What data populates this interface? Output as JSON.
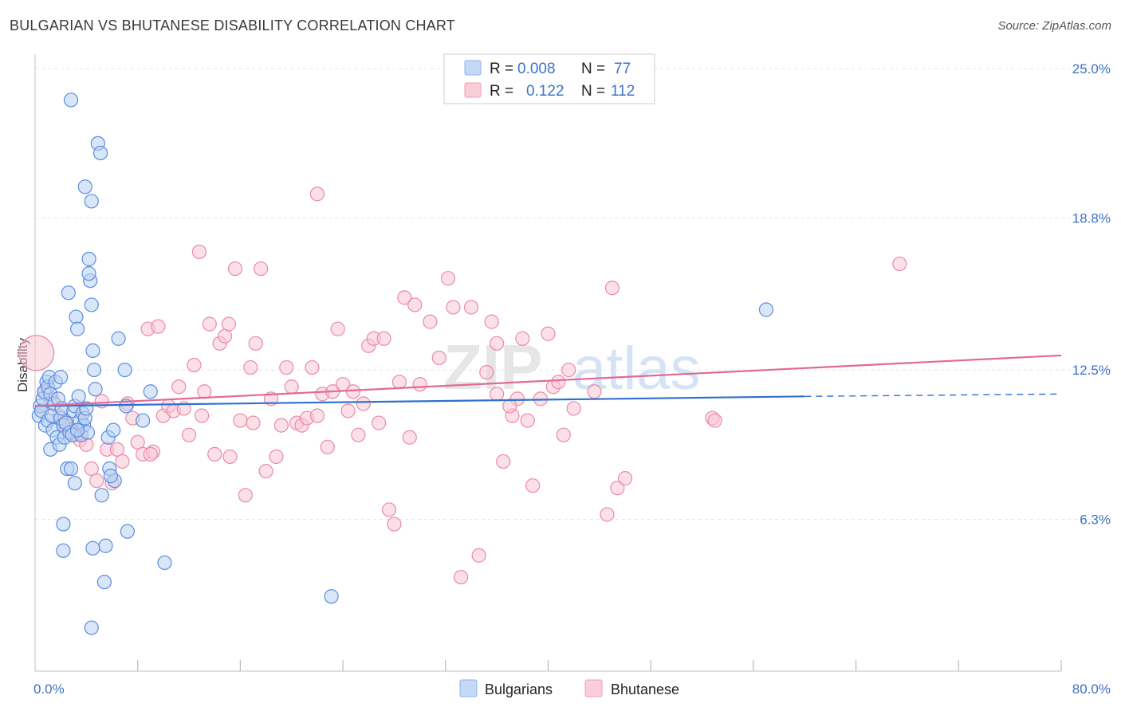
{
  "title": "BULGARIAN VS BHUTANESE DISABILITY CORRELATION CHART",
  "source": "Source: ZipAtlas.com",
  "watermark": {
    "zip": "ZIP",
    "atlas": "atlas"
  },
  "legend": {
    "r_label": "R =",
    "n_label": "N =",
    "rows": [
      {
        "r": "0.008",
        "n": "77",
        "color": "#8ab4f0",
        "fill": "#c5d9f7"
      },
      {
        "r": "0.122",
        "n": "112",
        "color": "#f0a0b8",
        "fill": "#f9cdd9"
      }
    ]
  },
  "bottom_legend": [
    "Bulgarians",
    "Bhutanese"
  ],
  "colors": {
    "blue_point_stroke": "#5b8de0",
    "blue_point_fill": "#b9d1f3",
    "pink_point_stroke": "#ea8aa8",
    "pink_point_fill": "#f7c6d5",
    "blue_line": "#2f6fd0",
    "pink_line": "#e06a95",
    "grid": "#e4e4e4",
    "tick_text": "#3d72c8"
  },
  "chart_data": {
    "type": "scatter",
    "ylabel": "Disability",
    "xlim": [
      0,
      80
    ],
    "ylim": [
      0,
      25.6
    ],
    "y_ticks": [
      {
        "value": 25.0,
        "label": "25.0%"
      },
      {
        "value": 18.8,
        "label": "18.8%"
      },
      {
        "value": 12.5,
        "label": "12.5%"
      },
      {
        "value": 6.3,
        "label": "6.3%"
      }
    ],
    "x_tick_labels": {
      "left": "0.0%",
      "right": "80.0%"
    },
    "x_minor_ticks": [
      8,
      16,
      24,
      32,
      40,
      48,
      56,
      64,
      72
    ],
    "grid": true,
    "series": [
      {
        "name": "Bulgarians",
        "trend": {
          "x0": 0,
          "y0": 11.0,
          "x1": 60,
          "y1": 11.4,
          "dash_to": 80,
          "dash_y": 11.5
        },
        "points": [
          [
            0.3,
            10.6
          ],
          [
            0.4,
            11.0
          ],
          [
            0.5,
            10.8
          ],
          [
            0.6,
            11.3
          ],
          [
            0.7,
            11.6
          ],
          [
            0.8,
            10.2
          ],
          [
            0.9,
            12.0
          ],
          [
            1.0,
            11.8
          ],
          [
            1.0,
            10.4
          ],
          [
            1.1,
            12.2
          ],
          [
            1.2,
            9.2
          ],
          [
            1.2,
            11.5
          ],
          [
            1.3,
            10.6
          ],
          [
            1.4,
            10.0
          ],
          [
            1.5,
            11.1
          ],
          [
            1.6,
            12.0
          ],
          [
            1.7,
            9.7
          ],
          [
            1.8,
            11.3
          ],
          [
            1.9,
            9.4
          ],
          [
            2.0,
            10.5
          ],
          [
            2.0,
            12.2
          ],
          [
            2.1,
            10.9
          ],
          [
            2.2,
            10.2
          ],
          [
            2.3,
            9.7
          ],
          [
            2.4,
            10.3
          ],
          [
            2.5,
            8.4
          ],
          [
            2.6,
            15.7
          ],
          [
            2.7,
            9.9
          ],
          [
            2.8,
            8.4
          ],
          [
            2.9,
            9.8
          ],
          [
            3.0,
            10.8
          ],
          [
            3.1,
            11.0
          ],
          [
            3.2,
            14.7
          ],
          [
            3.3,
            14.2
          ],
          [
            3.4,
            11.4
          ],
          [
            3.5,
            10.4
          ],
          [
            3.6,
            9.8
          ],
          [
            3.7,
            10.7
          ],
          [
            3.8,
            10.2
          ],
          [
            3.9,
            10.5
          ],
          [
            4.0,
            10.9
          ],
          [
            4.1,
            9.9
          ],
          [
            4.2,
            17.1
          ],
          [
            4.3,
            16.2
          ],
          [
            4.4,
            15.2
          ],
          [
            4.5,
            13.3
          ],
          [
            4.6,
            12.5
          ],
          [
            4.7,
            11.7
          ],
          [
            2.8,
            23.7
          ],
          [
            3.9,
            20.1
          ],
          [
            4.9,
            21.9
          ],
          [
            5.1,
            21.5
          ],
          [
            4.4,
            19.5
          ],
          [
            4.2,
            16.5
          ],
          [
            3.3,
            10.0
          ],
          [
            5.2,
            7.3
          ],
          [
            5.8,
            8.4
          ],
          [
            6.2,
            7.9
          ],
          [
            6.5,
            13.8
          ],
          [
            7.0,
            12.5
          ],
          [
            7.2,
            5.8
          ],
          [
            5.5,
            5.2
          ],
          [
            4.5,
            5.1
          ],
          [
            2.2,
            6.1
          ],
          [
            2.2,
            5.0
          ],
          [
            3.1,
            7.8
          ],
          [
            5.4,
            3.7
          ],
          [
            4.4,
            1.8
          ],
          [
            5.7,
            9.7
          ],
          [
            6.1,
            10.0
          ],
          [
            8.4,
            10.4
          ],
          [
            9.0,
            11.6
          ],
          [
            10.1,
            4.5
          ],
          [
            7.1,
            11.0
          ],
          [
            5.9,
            8.1
          ],
          [
            23.1,
            3.1
          ],
          [
            57.0,
            15.0
          ]
        ]
      },
      {
        "name": "Bhutanese",
        "trend": {
          "x0": 0,
          "y0": 11.0,
          "x1": 80,
          "y1": 13.1
        },
        "points": [
          [
            0.1,
            13.2
          ],
          [
            0.8,
            11.6
          ],
          [
            1.3,
            11.3
          ],
          [
            1.9,
            10.6
          ],
          [
            2.3,
            10.3
          ],
          [
            2.7,
            10.0
          ],
          [
            3.1,
            9.8
          ],
          [
            3.5,
            9.6
          ],
          [
            4.0,
            9.4
          ],
          [
            4.4,
            8.4
          ],
          [
            4.8,
            7.9
          ],
          [
            5.2,
            11.2
          ],
          [
            5.6,
            9.2
          ],
          [
            6.0,
            7.8
          ],
          [
            6.4,
            9.2
          ],
          [
            6.8,
            8.7
          ],
          [
            7.2,
            11.1
          ],
          [
            7.6,
            10.5
          ],
          [
            8.0,
            9.5
          ],
          [
            8.4,
            9.0
          ],
          [
            8.8,
            14.2
          ],
          [
            9.2,
            9.1
          ],
          [
            9.6,
            14.3
          ],
          [
            10.0,
            10.6
          ],
          [
            10.4,
            11.0
          ],
          [
            10.8,
            10.8
          ],
          [
            11.2,
            11.8
          ],
          [
            11.6,
            10.9
          ],
          [
            12.0,
            9.8
          ],
          [
            12.4,
            12.7
          ],
          [
            12.8,
            17.4
          ],
          [
            13.2,
            11.6
          ],
          [
            13.6,
            14.4
          ],
          [
            14.0,
            9.0
          ],
          [
            14.4,
            13.6
          ],
          [
            14.8,
            13.9
          ],
          [
            15.2,
            8.9
          ],
          [
            15.6,
            16.7
          ],
          [
            16.0,
            10.4
          ],
          [
            16.4,
            7.3
          ],
          [
            16.8,
            12.6
          ],
          [
            17.2,
            13.6
          ],
          [
            17.6,
            16.7
          ],
          [
            18.0,
            8.3
          ],
          [
            18.4,
            11.3
          ],
          [
            18.8,
            8.9
          ],
          [
            19.2,
            10.2
          ],
          [
            19.6,
            12.6
          ],
          [
            20.0,
            11.8
          ],
          [
            20.4,
            10.3
          ],
          [
            20.8,
            10.2
          ],
          [
            21.2,
            10.5
          ],
          [
            21.6,
            12.6
          ],
          [
            22.0,
            19.8
          ],
          [
            22.4,
            11.5
          ],
          [
            22.8,
            9.3
          ],
          [
            23.2,
            11.6
          ],
          [
            23.6,
            14.2
          ],
          [
            24.0,
            11.9
          ],
          [
            24.4,
            10.8
          ],
          [
            24.8,
            11.6
          ],
          [
            25.2,
            9.8
          ],
          [
            25.6,
            11.1
          ],
          [
            26.0,
            13.5
          ],
          [
            26.4,
            13.8
          ],
          [
            26.8,
            10.3
          ],
          [
            27.2,
            13.8
          ],
          [
            27.6,
            6.7
          ],
          [
            28.0,
            6.1
          ],
          [
            28.4,
            12.0
          ],
          [
            28.8,
            15.5
          ],
          [
            29.2,
            9.7
          ],
          [
            29.6,
            15.2
          ],
          [
            30.0,
            11.9
          ],
          [
            30.8,
            14.5
          ],
          [
            31.5,
            13.0
          ],
          [
            32.2,
            16.3
          ],
          [
            32.6,
            15.1
          ],
          [
            33.2,
            3.9
          ],
          [
            34.0,
            15.1
          ],
          [
            34.6,
            4.8
          ],
          [
            35.2,
            12.4
          ],
          [
            35.6,
            14.5
          ],
          [
            36.0,
            13.6
          ],
          [
            36.5,
            8.7
          ],
          [
            37.2,
            10.6
          ],
          [
            37.6,
            11.3
          ],
          [
            38.0,
            13.8
          ],
          [
            38.4,
            10.4
          ],
          [
            38.8,
            7.7
          ],
          [
            39.4,
            11.3
          ],
          [
            40.0,
            14.0
          ],
          [
            40.4,
            11.8
          ],
          [
            40.8,
            12.0
          ],
          [
            41.2,
            9.8
          ],
          [
            41.6,
            12.5
          ],
          [
            42.0,
            10.9
          ],
          [
            43.6,
            11.6
          ],
          [
            44.6,
            6.5
          ],
          [
            45.4,
            7.6
          ],
          [
            45.0,
            15.9
          ],
          [
            46.0,
            8.0
          ],
          [
            52.8,
            10.5
          ],
          [
            53.0,
            10.4
          ],
          [
            67.4,
            16.9
          ],
          [
            15.1,
            14.4
          ],
          [
            9.0,
            9.0
          ],
          [
            13.0,
            10.6
          ],
          [
            17.0,
            10.3
          ],
          [
            22.0,
            10.6
          ],
          [
            36.0,
            11.5
          ],
          [
            37.0,
            11.0
          ]
        ]
      }
    ]
  }
}
